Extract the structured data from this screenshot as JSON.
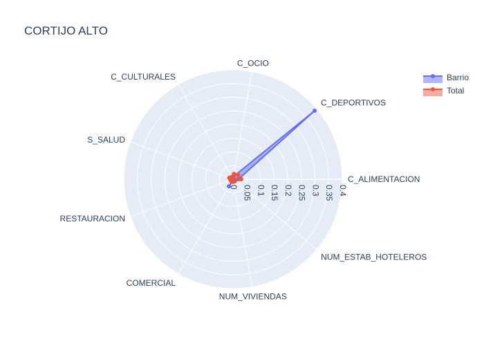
{
  "chart_data": {
    "type": "radar",
    "title": "CORTIJO ALTO",
    "categories": [
      "C_ALIMENTACION",
      "C_DEPORTIVOS",
      "C_OCIO",
      "C_CULTURALES",
      "S_SALUD",
      "RESTAURACION",
      "COMERCIAL",
      "NUM_VIVIENDAS",
      "NUM_ESTAB_HOTELEROS"
    ],
    "radial_axis": {
      "range": [
        0,
        0.4
      ],
      "ticks": [
        "0",
        "0.05",
        "0.1",
        "0.15",
        "0.2",
        "0.25",
        "0.3",
        "0.35",
        "0.4"
      ]
    },
    "series": [
      {
        "name": "Barrio",
        "color": "#636efa",
        "values": [
          0.02,
          0.39,
          0.01,
          0.0,
          0.01,
          0.0,
          0.03,
          0.005,
          0.0
        ]
      },
      {
        "name": "Total",
        "color": "#ef553b",
        "values": [
          0.03,
          0.025,
          0.02,
          0.01,
          0.015,
          0.01,
          0.01,
          0.01,
          0.01
        ]
      }
    ],
    "legend_position": "top-right",
    "grid": true
  }
}
